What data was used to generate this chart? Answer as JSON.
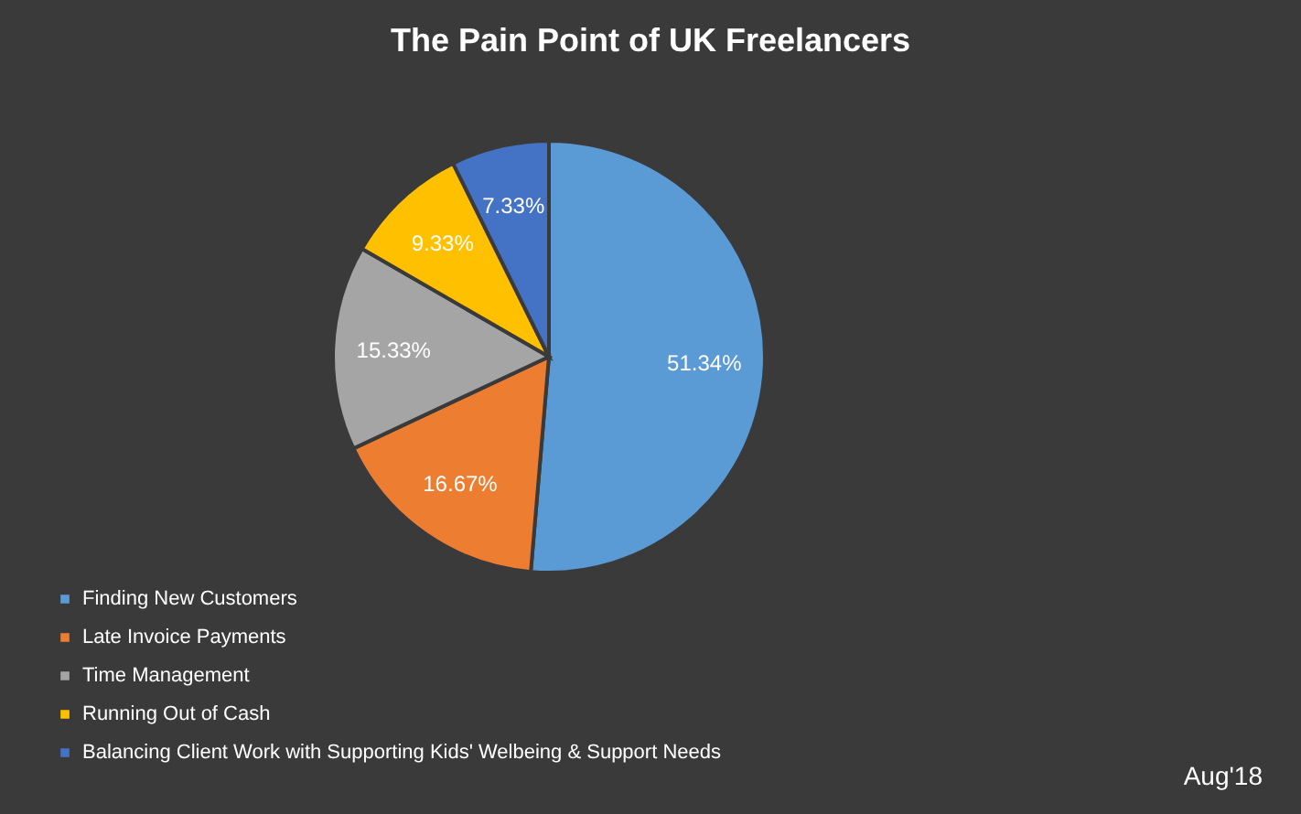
{
  "chart_data": {
    "type": "pie",
    "title": "The Pain Point of UK Freelancers",
    "categories": [
      "Finding New Customers",
      "Late Invoice Payments",
      "Time Management",
      "Running Out of Cash",
      "Balancing Client Work with Supporting Kids' Welbeing & Support Needs"
    ],
    "values": [
      51.34,
      16.67,
      15.33,
      9.33,
      7.33
    ],
    "colors": [
      "#5b9bd5",
      "#ed7d31",
      "#a5a5a5",
      "#ffc000",
      "#4472c4"
    ],
    "value_labels": [
      "51.34%",
      "16.67%",
      "15.33%",
      "9.33%",
      "7.33%"
    ],
    "legend": "bottom left",
    "annotations": [
      "Aug'18"
    ]
  }
}
